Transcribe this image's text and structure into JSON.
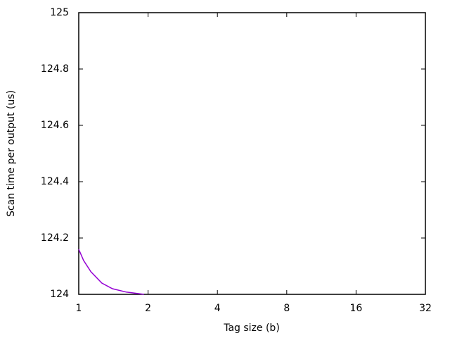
{
  "chart_data": {
    "type": "line",
    "xlabel": "Tag size (b)",
    "ylabel": "Scan time per output (us)",
    "xscale": "log",
    "xlim": [
      1,
      32
    ],
    "xticks": [
      1,
      2,
      4,
      8,
      16,
      32
    ],
    "ylim": [
      124,
      125
    ],
    "yticks": [
      124,
      124.2,
      124.4,
      124.6,
      124.8,
      125
    ],
    "x": [
      1,
      1.05,
      1.13,
      1.26,
      1.4,
      1.61,
      1.92
    ],
    "series": [
      {
        "color": "#9400d3",
        "values": [
          124.16,
          124.12,
          124.08,
          124.04,
          124.02,
          124.008,
          124.0
        ]
      }
    ]
  }
}
